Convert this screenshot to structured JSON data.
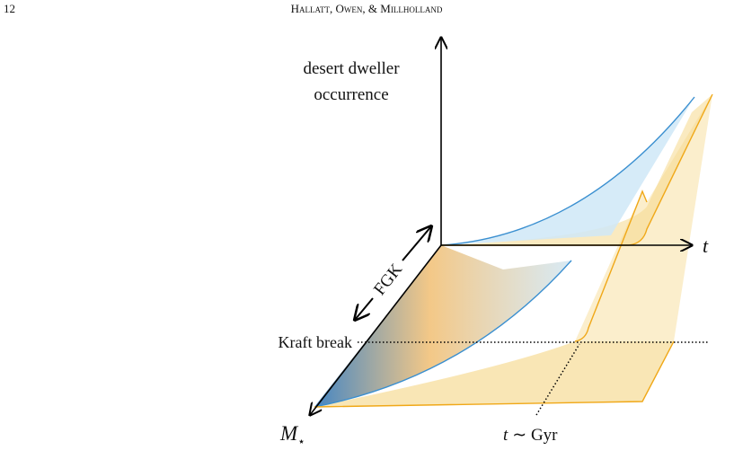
{
  "header": {
    "page_number": "12",
    "authors": "Hallatt, Owen, & Millholland"
  },
  "figure": {
    "y_axis_label": [
      "desert dweller",
      "occurrence"
    ],
    "t_axis_label": "t",
    "fgk_label": "FGK",
    "kraft_label": "Kraft break",
    "m_axis_label": {
      "base": "M",
      "sub": "⋆"
    },
    "gyr_label": {
      "var": "t",
      "rest": "∼ Gyr"
    }
  }
}
